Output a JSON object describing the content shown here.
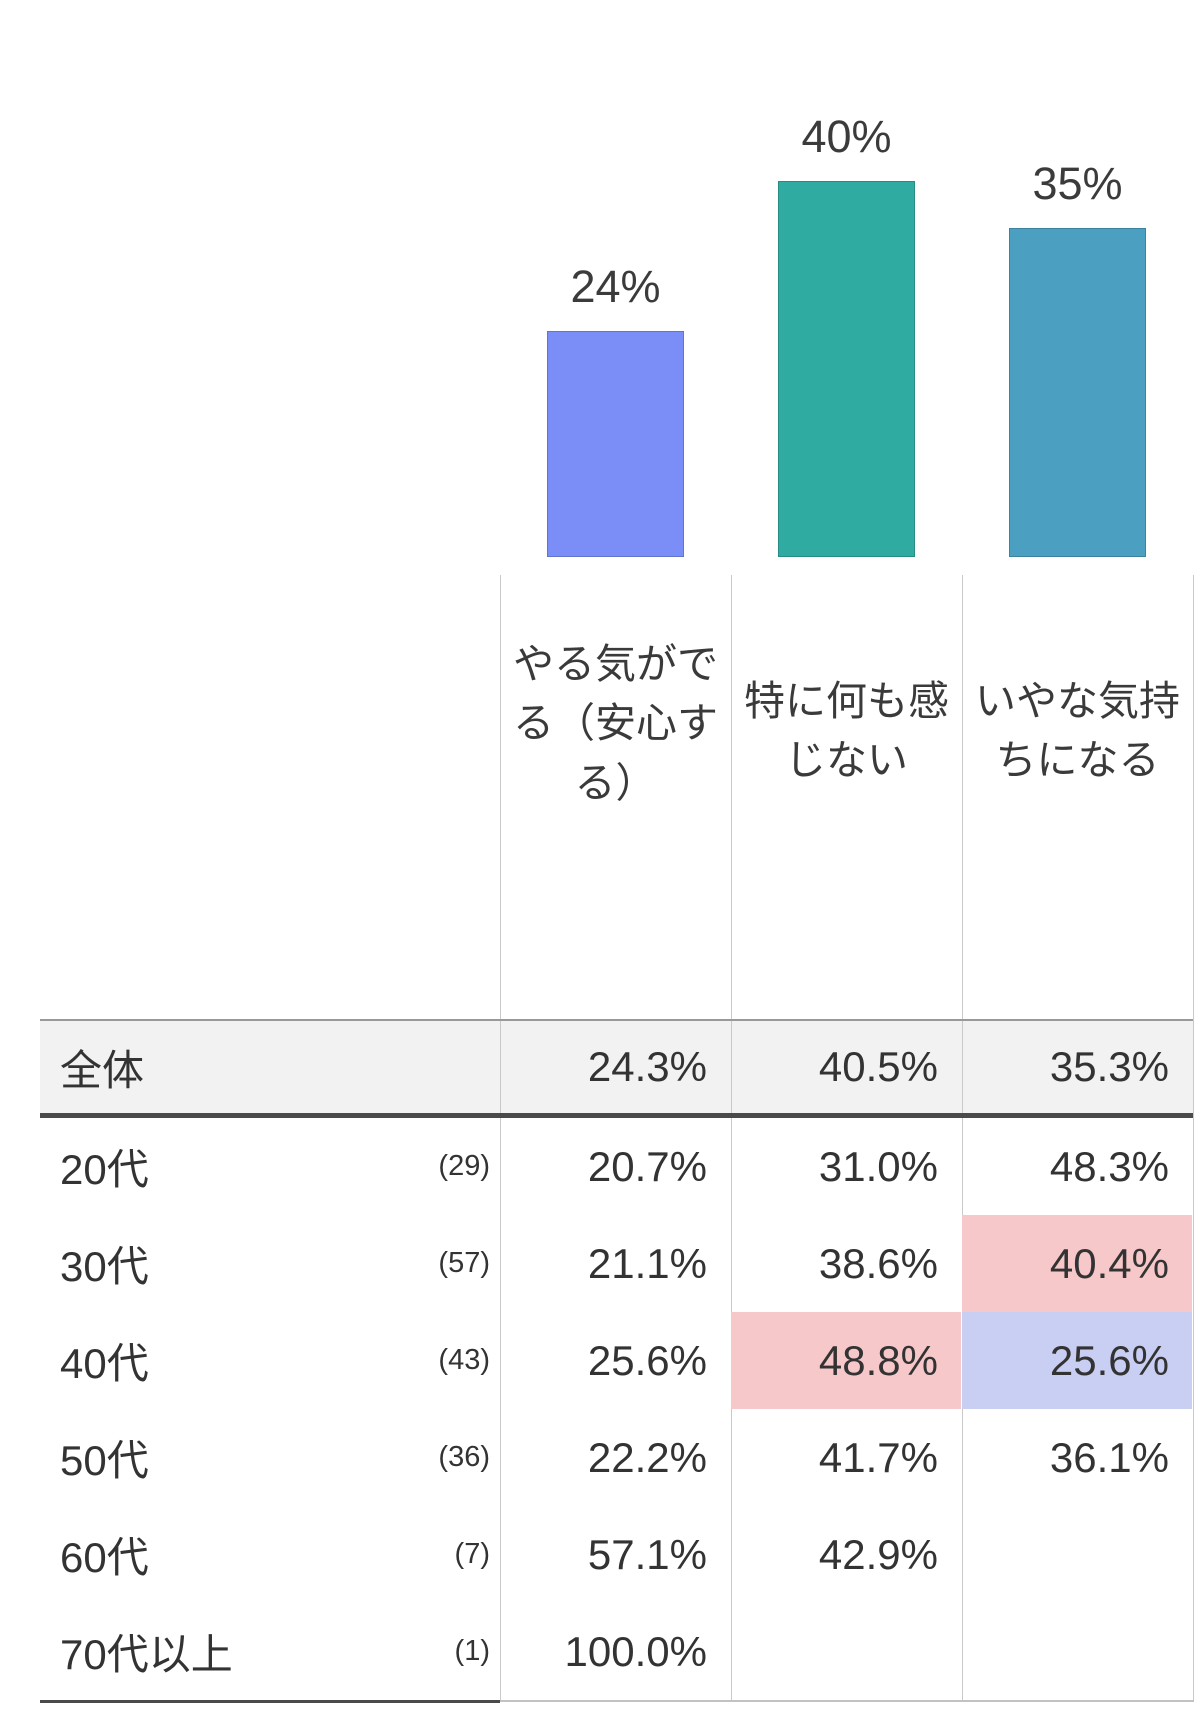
{
  "chart_data": {
    "type": "bar",
    "categories": [
      "やる気がでる（安心する）",
      "特に何も感じない",
      "いやな気持ちになる"
    ],
    "values": [
      24,
      40,
      35
    ],
    "bar_labels": [
      "24%",
      "40%",
      "35%"
    ],
    "bar_colors": [
      "#7B8EF8",
      "#2FABA2",
      "#4BA0C2"
    ],
    "title": "",
    "xlabel": "",
    "ylabel": "",
    "ylim": [
      0,
      45
    ],
    "grid": false,
    "legend": false,
    "table": {
      "column_headers_wrapped": [
        "やる気がで\nる（安心す\nる）",
        "特に何も感\nじない",
        "いやな気持\nちになる"
      ],
      "overall": {
        "label": "全体",
        "values": [
          "24.3%",
          "40.5%",
          "35.3%"
        ]
      },
      "rows": [
        {
          "label": "20代",
          "count": "(29)",
          "values": [
            "20.7%",
            "31.0%",
            "48.3%"
          ],
          "highlights": [
            "",
            "",
            ""
          ]
        },
        {
          "label": "30代",
          "count": "(57)",
          "values": [
            "21.1%",
            "38.6%",
            "40.4%"
          ],
          "highlights": [
            "",
            "",
            "pink"
          ]
        },
        {
          "label": "40代",
          "count": "(43)",
          "values": [
            "25.6%",
            "48.8%",
            "25.6%"
          ],
          "highlights": [
            "",
            "pink",
            "blue"
          ]
        },
        {
          "label": "50代",
          "count": "(36)",
          "values": [
            "22.2%",
            "41.7%",
            "36.1%"
          ],
          "highlights": [
            "",
            "",
            ""
          ]
        },
        {
          "label": "60代",
          "count": "(7)",
          "values": [
            "57.1%",
            "42.9%",
            ""
          ],
          "highlights": [
            "",
            "",
            ""
          ]
        },
        {
          "label": "70代以上",
          "count": "(1)",
          "values": [
            "100.0%",
            "",
            ""
          ],
          "highlights": [
            "",
            "",
            ""
          ]
        }
      ]
    }
  },
  "colors": {
    "highlight_pink": "#F6C8CA",
    "highlight_blue": "#C9CEF3",
    "overall_row_bg": "#F2F2F2",
    "thick_border": "#4A4A4A",
    "thin_border": "#999999",
    "light_border": "#C2C2C2",
    "gridline": "#C9C9C9",
    "text": "#333333"
  }
}
